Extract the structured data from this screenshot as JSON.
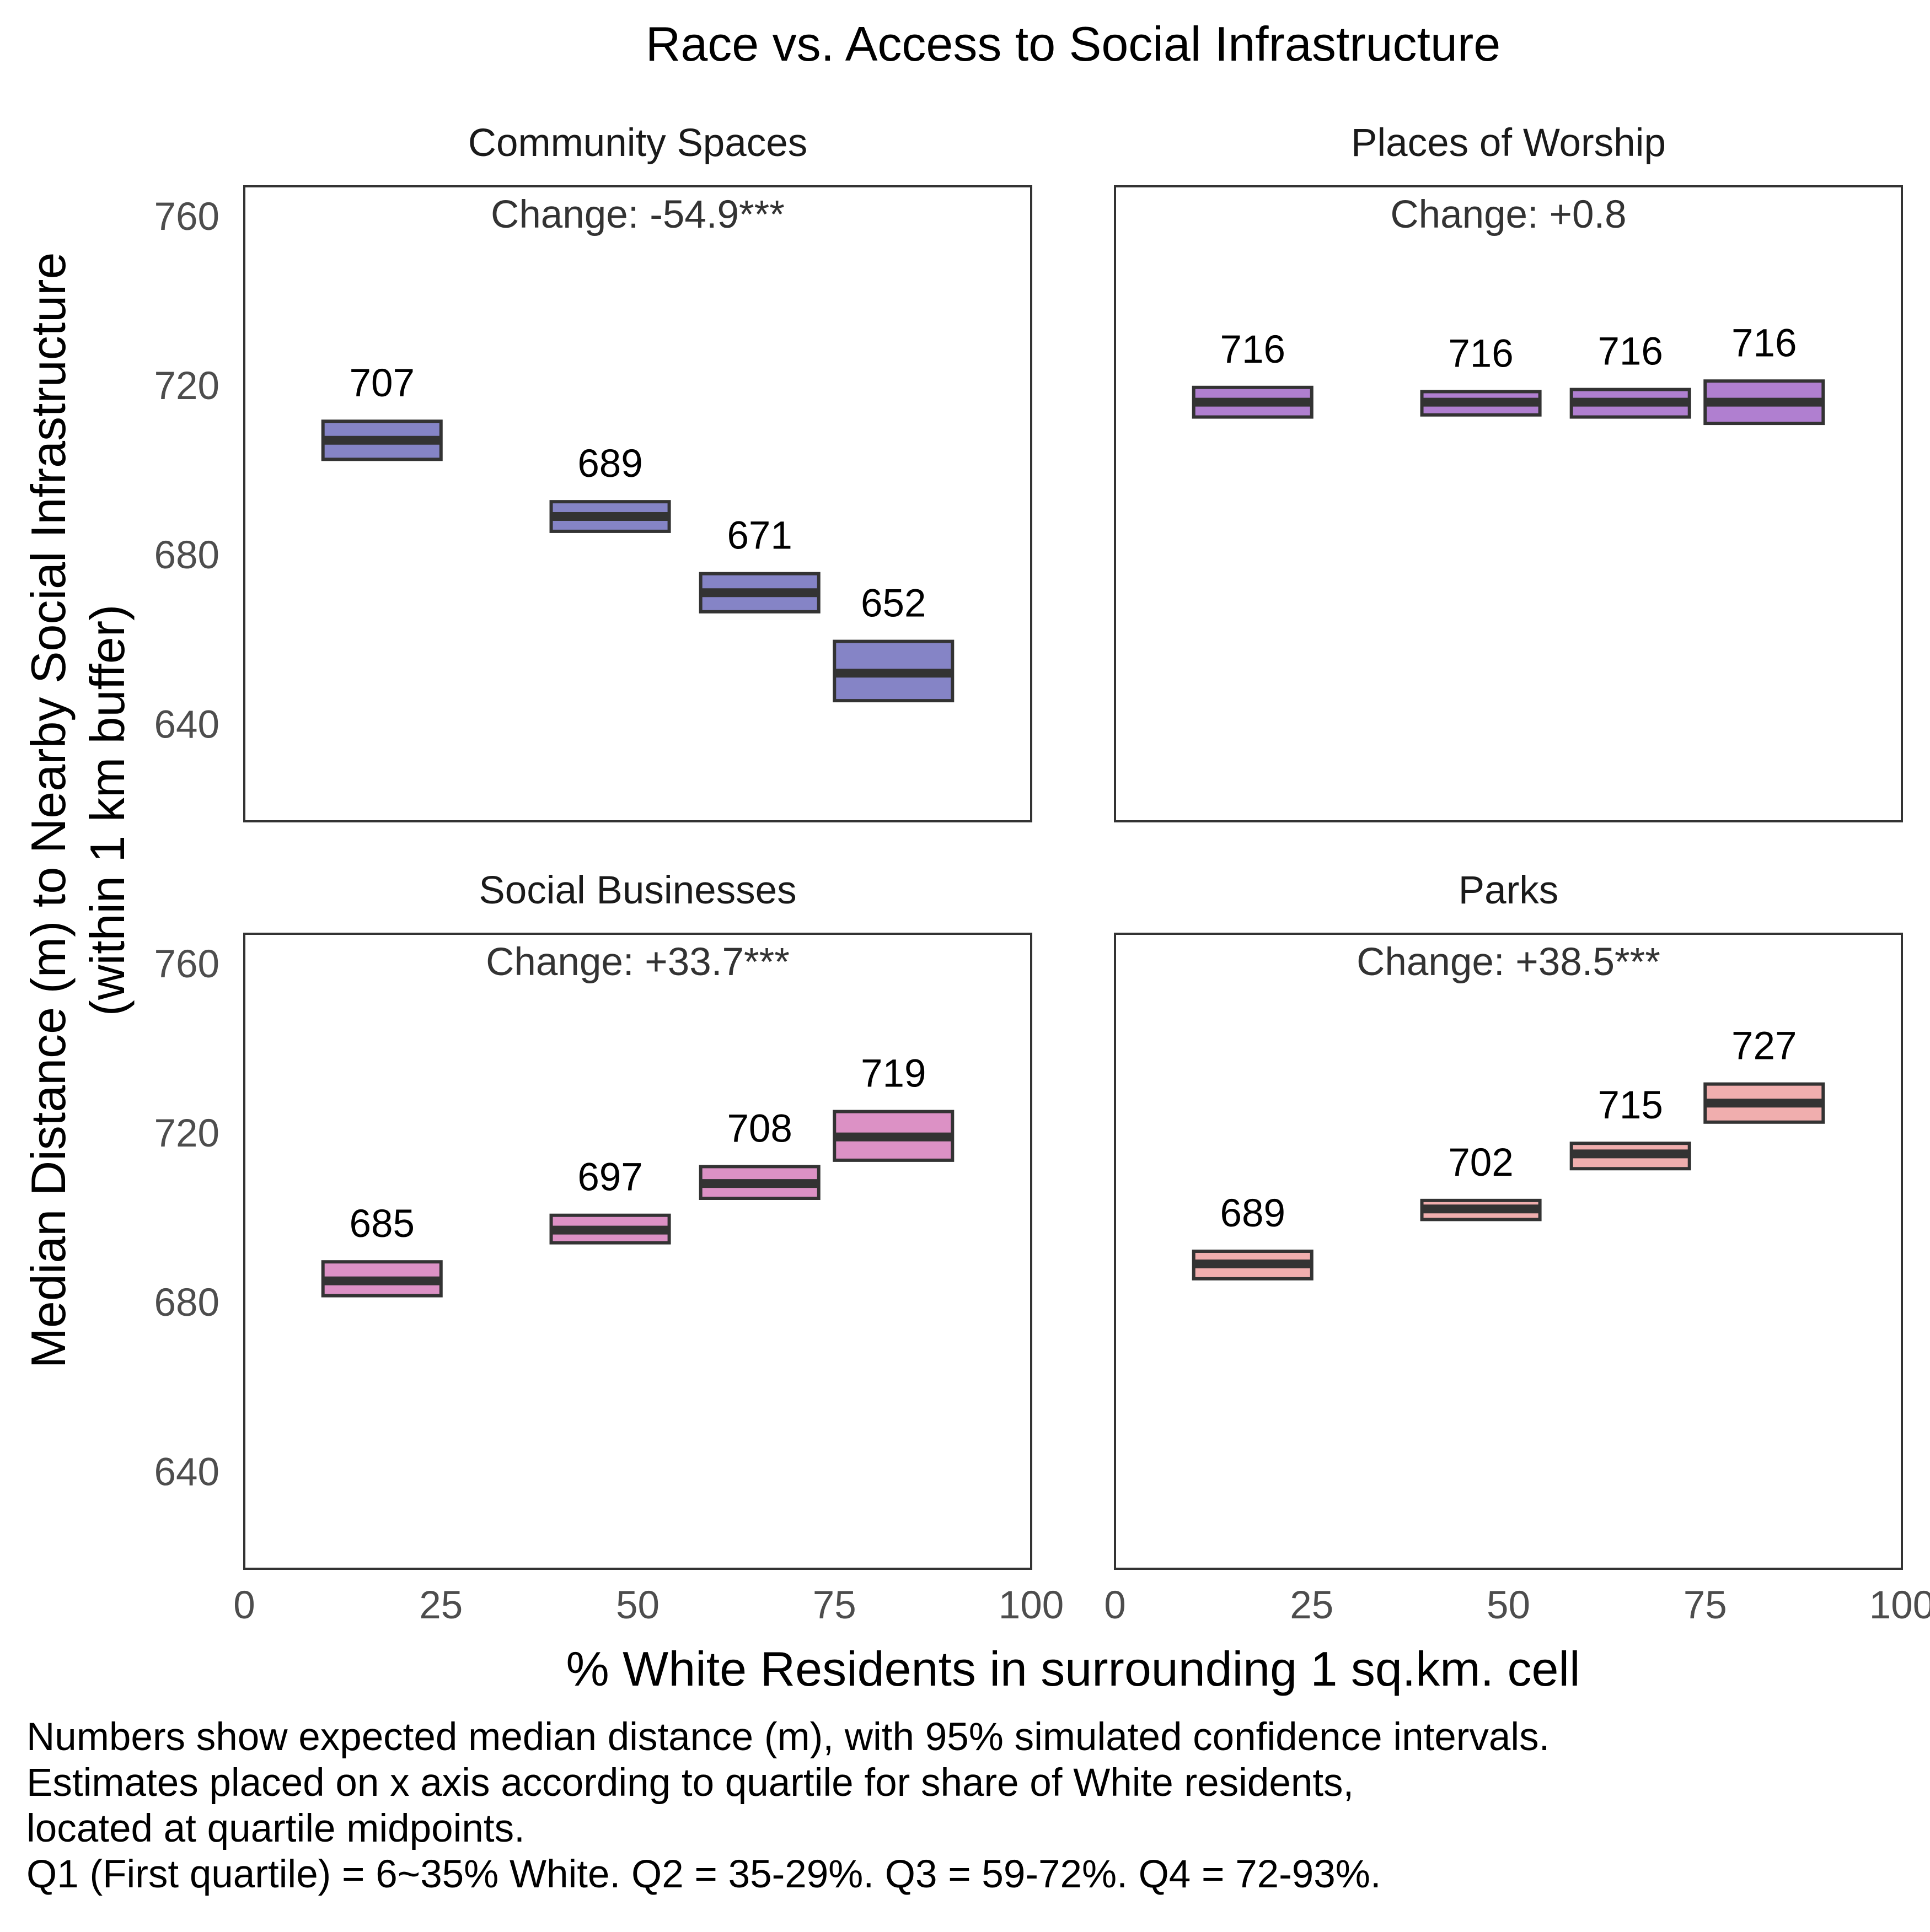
{
  "chart_data": {
    "type": "faceted-crossbar",
    "title": "Race vs. Access to Social Infrastructure",
    "xlabel": "% White Residents in surrounding 1 sq.km. cell",
    "ylabel_lines": [
      "Median Distance (m) to Nearby Social Infrastructure",
      "(within 1 km buffer)"
    ],
    "xlim": [
      0,
      100
    ],
    "ylim": [
      617,
      767
    ],
    "xticks": [
      0,
      25,
      50,
      75,
      100
    ],
    "yticks": [
      640,
      680,
      720,
      760
    ],
    "grid": false,
    "caption": [
      "Numbers show expected median distance (m), with 95% simulated confidence intervals.",
      "Estimates placed on x axis according to quartile for share of White residents,",
      "located at quartile midpoints.",
      "Q1 (First quartile) = 6~35% White. Q2 = 35-29%. Q3 = 59-72%. Q4 = 72-93%."
    ],
    "panels": [
      {
        "name": "Community Spaces",
        "change": "Change: -54.9***",
        "color": "#8584c6",
        "points": [
          {
            "x": 17.5,
            "xmin": 10,
            "xmax": 25,
            "y": 707,
            "ymin": 702.5,
            "ymax": 711.5,
            "label": "707"
          },
          {
            "x": 46.5,
            "xmin": 39,
            "xmax": 54,
            "y": 689,
            "ymin": 685.5,
            "ymax": 692.5,
            "label": "689"
          },
          {
            "x": 65.5,
            "xmin": 58,
            "xmax": 73,
            "y": 671,
            "ymin": 666.5,
            "ymax": 675.5,
            "label": "671"
          },
          {
            "x": 82.5,
            "xmin": 75,
            "xmax": 90,
            "y": 652,
            "ymin": 645.5,
            "ymax": 659.5,
            "label": "652"
          }
        ]
      },
      {
        "name": "Places of Worship",
        "change": "Change: +0.8",
        "color": "#b07fd0",
        "points": [
          {
            "x": 17.5,
            "xmin": 10,
            "xmax": 25,
            "y": 716,
            "ymin": 712.5,
            "ymax": 719.5,
            "label": "716"
          },
          {
            "x": 46.5,
            "xmin": 39,
            "xmax": 54,
            "y": 716,
            "ymin": 713,
            "ymax": 718.5,
            "label": "716"
          },
          {
            "x": 65.5,
            "xmin": 58,
            "xmax": 73,
            "y": 716,
            "ymin": 712.5,
            "ymax": 719,
            "label": "716"
          },
          {
            "x": 82.5,
            "xmin": 75,
            "xmax": 90,
            "y": 716,
            "ymin": 711,
            "ymax": 721,
            "label": "716"
          }
        ]
      },
      {
        "name": "Social Businesses",
        "change": "Change: +33.7***",
        "color": "#dc91c5",
        "points": [
          {
            "x": 17.5,
            "xmin": 10,
            "xmax": 25,
            "y": 685,
            "ymin": 681.5,
            "ymax": 689.5,
            "label": "685"
          },
          {
            "x": 46.5,
            "xmin": 39,
            "xmax": 54,
            "y": 697,
            "ymin": 694,
            "ymax": 700.5,
            "label": "697"
          },
          {
            "x": 65.5,
            "xmin": 58,
            "xmax": 73,
            "y": 708,
            "ymin": 704.5,
            "ymax": 712,
            "label": "708"
          },
          {
            "x": 82.5,
            "xmin": 75,
            "xmax": 90,
            "y": 719,
            "ymin": 713.5,
            "ymax": 725,
            "label": "719"
          }
        ]
      },
      {
        "name": "Parks",
        "change": "Change: +38.5***",
        "color": "#f0aeae",
        "points": [
          {
            "x": 17.5,
            "xmin": 10,
            "xmax": 25,
            "y": 689,
            "ymin": 685.5,
            "ymax": 692,
            "label": "689"
          },
          {
            "x": 46.5,
            "xmin": 39,
            "xmax": 54,
            "y": 702,
            "ymin": 699.5,
            "ymax": 704,
            "label": "702"
          },
          {
            "x": 65.5,
            "xmin": 58,
            "xmax": 73,
            "y": 715,
            "ymin": 711.5,
            "ymax": 717.5,
            "label": "715"
          },
          {
            "x": 82.5,
            "xmin": 75,
            "xmax": 90,
            "y": 727,
            "ymin": 722.5,
            "ymax": 731.5,
            "label": "727"
          }
        ]
      }
    ]
  }
}
